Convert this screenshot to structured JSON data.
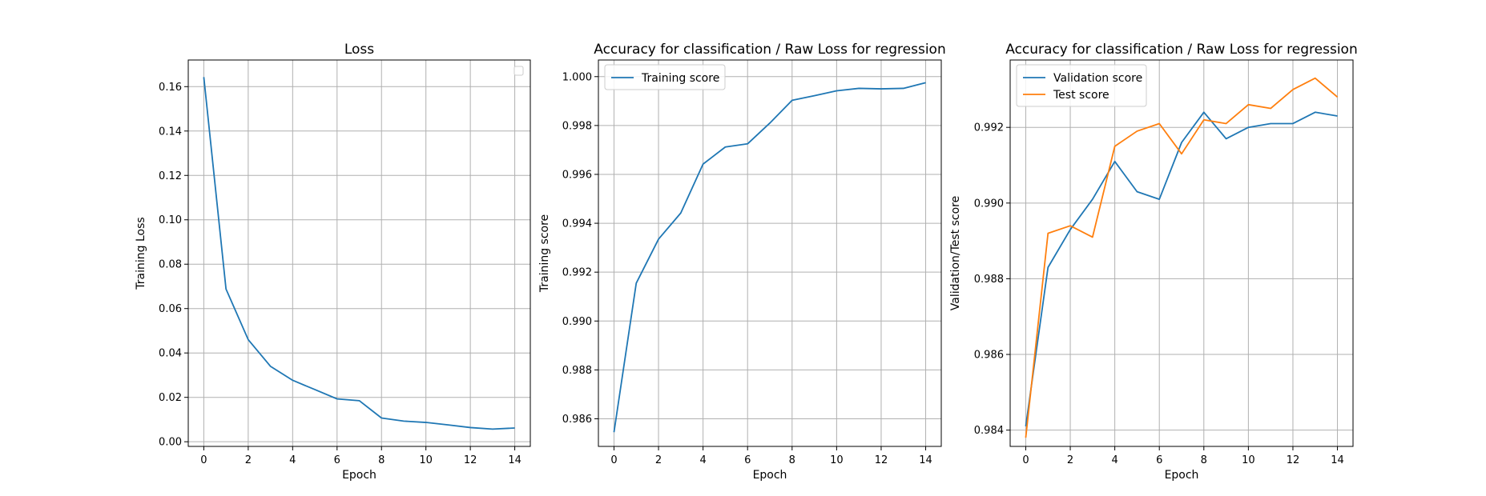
{
  "chart_data": [
    {
      "type": "line",
      "title": "Loss",
      "xlabel": "Epoch",
      "ylabel": "Training Loss",
      "xlim": [
        -0.7,
        14.7
      ],
      "ylim": [
        -0.0021,
        0.172
      ],
      "xticks": [
        0,
        2,
        4,
        6,
        8,
        10,
        12,
        14
      ],
      "yticks": [
        0.0,
        0.02,
        0.04,
        0.06,
        0.08,
        0.1,
        0.12,
        0.14,
        0.16
      ],
      "ytick_labels": [
        "0.00",
        "0.02",
        "0.04",
        "0.06",
        "0.08",
        "0.10",
        "0.12",
        "0.14",
        "0.16"
      ],
      "grid": true,
      "legend": "top-right (empty)",
      "x": [
        0,
        1,
        2,
        3,
        4,
        5,
        6,
        7,
        8,
        9,
        10,
        11,
        12,
        13,
        14
      ],
      "series": [
        {
          "color": "#1f77b4",
          "values": [
            0.1643,
            0.0688,
            0.046,
            0.034,
            0.0277,
            0.0235,
            0.0193,
            0.0185,
            0.0107,
            0.0093,
            0.0087,
            0.0076,
            0.0064,
            0.0057,
            0.0062
          ]
        }
      ]
    },
    {
      "type": "line",
      "title": "Accuracy for classification / Raw Loss for regression",
      "xlabel": "Epoch",
      "ylabel": "Training score",
      "xlim": [
        -0.7,
        14.7
      ],
      "ylim": [
        0.98487,
        1.00068
      ],
      "xticks": [
        0,
        2,
        4,
        6,
        8,
        10,
        12,
        14
      ],
      "yticks": [
        0.986,
        0.988,
        0.99,
        0.992,
        0.994,
        0.996,
        0.998,
        1.0
      ],
      "ytick_labels": [
        "0.986",
        "0.988",
        "0.990",
        "0.992",
        "0.994",
        "0.996",
        "0.998",
        "1.000"
      ],
      "grid": true,
      "legend": "top-left",
      "x": [
        0,
        1,
        2,
        3,
        4,
        5,
        6,
        7,
        8,
        9,
        10,
        11,
        12,
        13,
        14
      ],
      "series": [
        {
          "name": "Training score",
          "color": "#1f77b4",
          "values": [
            0.98545,
            0.99155,
            0.99335,
            0.99442,
            0.99642,
            0.99712,
            0.99725,
            0.9981,
            0.99903,
            0.99922,
            0.99942,
            0.99952,
            0.9995,
            0.99952,
            0.99975
          ]
        }
      ]
    },
    {
      "type": "line",
      "title": "Accuracy for classification / Raw Loss for regression",
      "xlabel": "Epoch",
      "ylabel": "Validation/Test score",
      "xlim": [
        -0.7,
        14.7
      ],
      "ylim": [
        0.98357,
        0.99378
      ],
      "xticks": [
        0,
        2,
        4,
        6,
        8,
        10,
        12,
        14
      ],
      "yticks": [
        0.984,
        0.986,
        0.988,
        0.99,
        0.992
      ],
      "ytick_labels": [
        "0.984",
        "0.986",
        "0.988",
        "0.990",
        "0.992"
      ],
      "grid": true,
      "legend": "top-left",
      "x": [
        0,
        1,
        2,
        3,
        4,
        5,
        6,
        7,
        8,
        9,
        10,
        11,
        12,
        13,
        14
      ],
      "series": [
        {
          "name": "Validation score",
          "color": "#1f77b4",
          "values": [
            0.9841,
            0.9883,
            0.9893,
            0.9901,
            0.9911,
            0.9903,
            0.9901,
            0.9916,
            0.9924,
            0.9917,
            0.992,
            0.9921,
            0.9921,
            0.9924,
            0.9923
          ]
        },
        {
          "name": "Test score",
          "color": "#ff7f0e",
          "values": [
            0.9838,
            0.9892,
            0.9894,
            0.9891,
            0.9915,
            0.9919,
            0.9921,
            0.9913,
            0.9922,
            0.9921,
            0.9926,
            0.9925,
            0.993,
            0.9933,
            0.9928
          ]
        }
      ]
    }
  ]
}
